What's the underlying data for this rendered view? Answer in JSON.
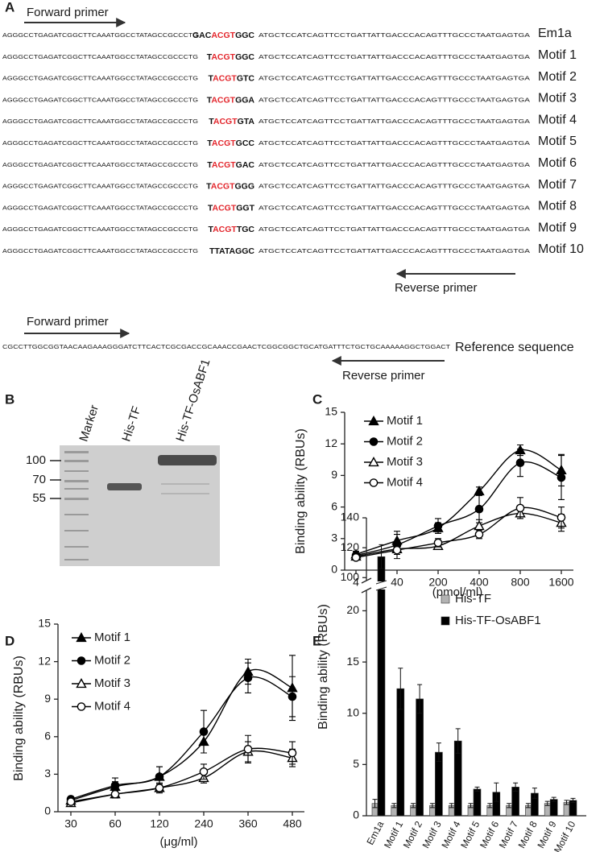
{
  "panel_a": {
    "letter": "A",
    "forward_primer": "Forward primer",
    "reverse_primer": "Reverse primer",
    "highlight_color": "#e3262c",
    "rows": [
      {
        "left": "AGGGCCTGAGATCGGCTTCAAATGGCCTATAGCCGCCCTG",
        "core": [
          {
            "text": "GAC"
          },
          {
            "text": "ACGT",
            "highlight": true
          },
          {
            "text": "GGC"
          }
        ],
        "right": "ATGCTCCATCAGTTCCTGATTATTGACCCACAGTTTGCCCTAATGAGTGA",
        "label": "Em1a"
      },
      {
        "left": "AGGGCCTGAGATCGGCTTCAAATGGCCTATAGCCGCCCTG",
        "core": [
          {
            "text": "T"
          },
          {
            "text": "ACGT",
            "highlight": true
          },
          {
            "text": "GGC"
          }
        ],
        "right": "ATGCTCCATCAGTTCCTGATTATTGACCCACAGTTTGCCCTAATGAGTGA",
        "label": "Motif 1"
      },
      {
        "left": "AGGGCCTGAGATCGGCTTCAAATGGCCTATAGCCGCCCTG",
        "core": [
          {
            "text": "T"
          },
          {
            "text": "ACGT",
            "highlight": true
          },
          {
            "text": "GTC"
          }
        ],
        "right": "ATGCTCCATCAGTTCCTGATTATTGACCCACAGTTTGCCCTAATGAGTGA",
        "label": "Motif 2"
      },
      {
        "left": "AGGGCCTGAGATCGGCTTCAAATGGCCTATAGCCGCCCTG",
        "core": [
          {
            "text": "T"
          },
          {
            "text": "ACGT",
            "highlight": true
          },
          {
            "text": "GGA"
          }
        ],
        "right": "ATGCTCCATCAGTTCCTGATTATTGACCCACAGTTTGCCCTAATGAGTGA",
        "label": "Motif 3"
      },
      {
        "left": "AGGGCCTGAGATCGGCTTCAAATGGCCTATAGCCGCCCTG",
        "core": [
          {
            "text": "T"
          },
          {
            "text": "ACGT",
            "highlight": true
          },
          {
            "text": "GTA"
          }
        ],
        "right": "ATGCTCCATCAGTTCCTGATTATTGACCCACAGTTTGCCCTAATGAGTGA",
        "label": "Motif 4"
      },
      {
        "left": "AGGGCCTGAGATCGGCTTCAAATGGCCTATAGCCGCCCTG",
        "core": [
          {
            "text": "T"
          },
          {
            "text": "ACGT",
            "highlight": true
          },
          {
            "text": "GCC"
          }
        ],
        "right": "ATGCTCCATCAGTTCCTGATTATTGACCCACAGTTTGCCCTAATGAGTGA",
        "label": "Motif 5"
      },
      {
        "left": "AGGGCCTGAGATCGGCTTCAAATGGCCTATAGCCGCCCTG",
        "core": [
          {
            "text": "T"
          },
          {
            "text": "ACGT",
            "highlight": true
          },
          {
            "text": "GAC"
          }
        ],
        "right": "ATGCTCCATCAGTTCCTGATTATTGACCCACAGTTTGCCCTAATGAGTGA",
        "label": "Motif 6"
      },
      {
        "left": "AGGGCCTGAGATCGGCTTCAAATGGCCTATAGCCGCCCTG",
        "core": [
          {
            "text": "T"
          },
          {
            "text": "ACGT",
            "highlight": true
          },
          {
            "text": "GGG"
          }
        ],
        "right": "ATGCTCCATCAGTTCCTGATTATTGACCCACAGTTTGCCCTAATGAGTGA",
        "label": "Motif 7"
      },
      {
        "left": "AGGGCCTGAGATCGGCTTCAAATGGCCTATAGCCGCCCTG",
        "core": [
          {
            "text": "T"
          },
          {
            "text": "ACGT",
            "highlight": true
          },
          {
            "text": "GGT"
          }
        ],
        "right": "ATGCTCCATCAGTTCCTGATTATTGACCCACAGTTTGCCCTAATGAGTGA",
        "label": "Motif 8"
      },
      {
        "left": "AGGGCCTGAGATCGGCTTCAAATGGCCTATAGCCGCCCTG",
        "core": [
          {
            "text": "T"
          },
          {
            "text": "ACGT",
            "highlight": true
          },
          {
            "text": "TGC"
          }
        ],
        "right": "ATGCTCCATCAGTTCCTGATTATTGACCCACAGTTTGCCCTAATGAGTGA",
        "label": "Motif 9"
      },
      {
        "left": "AGGGCCTGAGATCGGCTTCAAATGGCCTATAGCCGCCCTG",
        "core": [
          {
            "text": "TTATAGGC"
          }
        ],
        "right": "ATGCTCCATCAGTTCCTGATTATTGACCCACAGTTTGCCCTAATGAGTGA",
        "label": "Motif 10"
      }
    ],
    "reference": {
      "forward_primer": "Forward primer",
      "sequence": "CGCCTTGGCGGTAACAAGAAAGGGATCTTCACTCGCGACCGCAAACCGAACTCGGCGGCTGCATGATTTCTGCTGCAAAAAGGCTGGACT",
      "label": "Reference sequence",
      "reverse_primer": "Reverse primer"
    }
  },
  "panel_b": {
    "letter": "B",
    "lanes": [
      "Marker",
      "His-TF",
      "His-TF-OsABF1"
    ],
    "size_marks": [
      "100",
      "70",
      "55"
    ]
  },
  "chart_data": [
    {
      "type": "line",
      "panel": "C",
      "y_label": "Binding ability (RBUs)",
      "x_label": "(pmol/ml)",
      "categories": [
        "4",
        "40",
        "200",
        "400",
        "800",
        "1600"
      ],
      "ylim": [
        0,
        15
      ],
      "yticks": [
        0,
        3,
        6,
        9,
        12,
        15
      ],
      "series": [
        {
          "name": "Motif 1",
          "color": "#000000",
          "marker": "triangle",
          "filled": true,
          "values": [
            1.5,
            2.8,
            4.0,
            7.5,
            11.4,
            9.5
          ],
          "errors": [
            0.3,
            0.6,
            0.5,
            0.4,
            0.5,
            1.5
          ]
        },
        {
          "name": "Motif 2",
          "color": "#000000",
          "marker": "circle",
          "filled": true,
          "values": [
            1.4,
            2.4,
            4.2,
            5.8,
            10.2,
            8.8
          ],
          "errors": [
            0.3,
            1.3,
            0.7,
            1.3,
            1.3,
            2.1
          ]
        },
        {
          "name": "Motif 3",
          "color": "#000000",
          "marker": "triangle",
          "filled": false,
          "values": [
            1.3,
            2.0,
            2.3,
            4.2,
            5.4,
            4.5
          ],
          "errors": [
            0.2,
            0.3,
            0.3,
            0.6,
            0.5,
            0.8
          ]
        },
        {
          "name": "Motif 4",
          "color": "#000000",
          "marker": "circle",
          "filled": false,
          "values": [
            1.2,
            1.9,
            2.6,
            3.4,
            5.9,
            5.0
          ],
          "errors": [
            0.2,
            0.4,
            0.4,
            0.4,
            1.0,
            1.0
          ]
        }
      ]
    },
    {
      "type": "line",
      "panel": "D",
      "y_label": "Binding ability (RBUs)",
      "x_label": "(μg/ml)",
      "categories": [
        "30",
        "60",
        "120",
        "240",
        "360",
        "480"
      ],
      "ylim": [
        0,
        15
      ],
      "yticks": [
        0,
        3,
        6,
        9,
        12,
        15
      ],
      "series": [
        {
          "name": "Motif 1",
          "color": "#000000",
          "marker": "triangle",
          "filled": true,
          "values": [
            0.9,
            2.0,
            2.8,
            5.6,
            11.2,
            9.9
          ],
          "errors": [
            0.2,
            0.4,
            0.8,
            0.9,
            1.0,
            2.6
          ]
        },
        {
          "name": "Motif 2",
          "color": "#000000",
          "marker": "circle",
          "filled": true,
          "values": [
            1.0,
            2.1,
            2.8,
            6.4,
            10.7,
            9.2
          ],
          "errors": [
            0.2,
            0.6,
            0.8,
            1.7,
            1.2,
            1.6
          ]
        },
        {
          "name": "Motif 3",
          "color": "#000000",
          "marker": "triangle",
          "filled": false,
          "values": [
            0.7,
            1.4,
            1.9,
            2.7,
            4.8,
            4.3
          ],
          "errors": [
            0.2,
            0.3,
            0.3,
            0.4,
            0.8,
            0.7
          ]
        },
        {
          "name": "Motif 4",
          "color": "#000000",
          "marker": "circle",
          "filled": false,
          "values": [
            0.8,
            1.4,
            1.9,
            3.2,
            5.0,
            4.7
          ],
          "errors": [
            0.2,
            0.3,
            0.4,
            0.6,
            1.1,
            0.9
          ]
        }
      ]
    },
    {
      "type": "bar",
      "panel": "E",
      "y_label": "Binding ability (RBUs)",
      "categories": [
        "Em1a",
        "Motif 1",
        "Motif 2",
        "Motif 3",
        "Motif 4",
        "Motif 5",
        "Motif 6",
        "Motif 7",
        "Motif 8",
        "Motif 9",
        "Motif 10"
      ],
      "ylim": [
        0,
        140
      ],
      "ybreak": [
        22,
        98
      ],
      "yticks": [
        0,
        5,
        10,
        15,
        20,
        100,
        120,
        140
      ],
      "series": [
        {
          "name": "His-TF",
          "color": "#b3b3b3",
          "values": [
            1.2,
            1.0,
            1.0,
            1.0,
            1.0,
            1.0,
            1.0,
            1.0,
            1.0,
            1.2,
            1.3
          ],
          "errors": [
            0.4,
            0.2,
            0.2,
            0.2,
            0.2,
            0.2,
            0.2,
            0.2,
            0.2,
            0.2,
            0.2
          ]
        },
        {
          "name": "His-TF-OsABF1",
          "color": "#000000",
          "values": [
            114,
            12.4,
            11.4,
            6.2,
            7.3,
            2.6,
            2.3,
            2.8,
            2.2,
            1.6,
            1.5
          ],
          "errors": [
            8,
            2.0,
            1.4,
            0.9,
            1.2,
            0.2,
            0.9,
            0.4,
            0.5,
            0.2,
            0.2
          ]
        }
      ]
    }
  ]
}
